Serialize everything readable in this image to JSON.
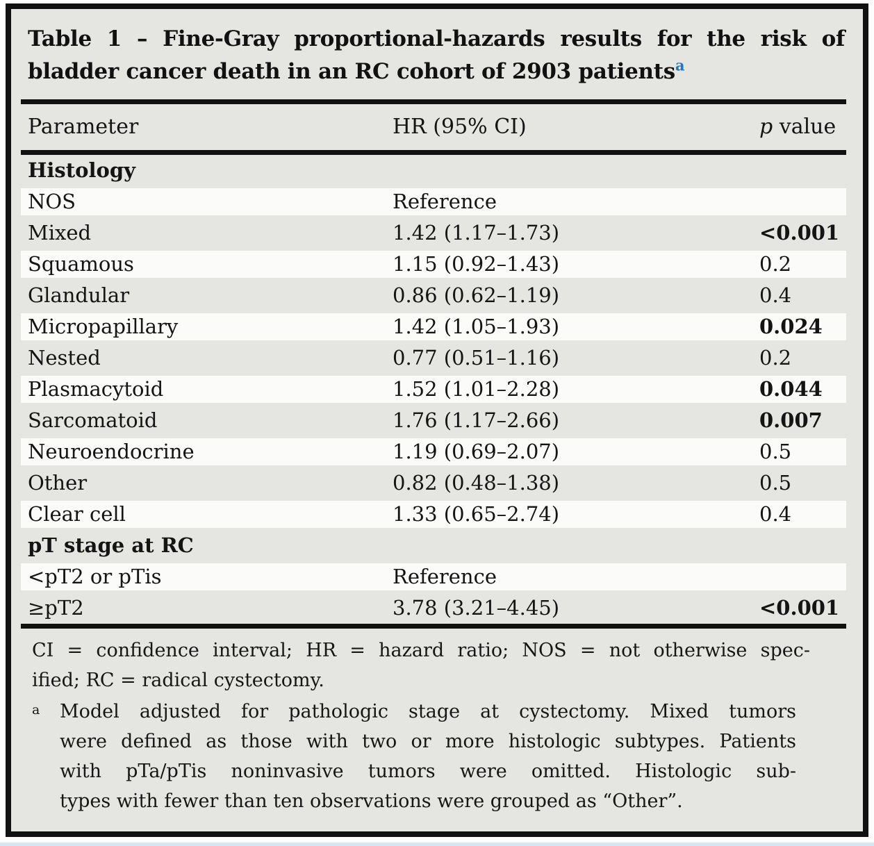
{
  "colors": {
    "frame_border": "#111111",
    "table_background": "#e5e5e2",
    "row_stripe": "#fbfbfa",
    "footnote_marker_blue": "#2878b8",
    "bottom_strip": "#d6e6f4"
  },
  "table": {
    "title": {
      "line1": "Table 1 – Fine-Gray proportional-hazards results for the risk of",
      "line2": "bladder cancer death in an RC cohort of 2903 patients",
      "footnote_marker": "a"
    },
    "columns": {
      "parameter": "Parameter",
      "hr": "HR (95% CI)",
      "p_italic": "p",
      "p_rest": " value"
    },
    "sections": [
      {
        "header": "Histology",
        "rows": [
          {
            "parameter": "NOS",
            "hr": "Reference",
            "p": "",
            "significant": false
          },
          {
            "parameter": "Mixed",
            "hr": "1.42 (1.17–1.73)",
            "p": "<0.001",
            "significant": true
          },
          {
            "parameter": "Squamous",
            "hr": "1.15 (0.92–1.43)",
            "p": "0.2",
            "significant": false
          },
          {
            "parameter": "Glandular",
            "hr": "0.86 (0.62–1.19)",
            "p": "0.4",
            "significant": false
          },
          {
            "parameter": "Micropapillary",
            "hr": "1.42 (1.05–1.93)",
            "p": "0.024",
            "significant": true
          },
          {
            "parameter": "Nested",
            "hr": "0.77 (0.51–1.16)",
            "p": "0.2",
            "significant": false
          },
          {
            "parameter": "Plasmacytoid",
            "hr": "1.52 (1.01–2.28)",
            "p": "0.044",
            "significant": true
          },
          {
            "parameter": "Sarcomatoid",
            "hr": "1.76 (1.17–2.66)",
            "p": "0.007",
            "significant": true
          },
          {
            "parameter": "Neuroendocrine",
            "hr": "1.19 (0.69–2.07)",
            "p": "0.5",
            "significant": false
          },
          {
            "parameter": "Other",
            "hr": "0.82 (0.48–1.38)",
            "p": "0.5",
            "significant": false
          },
          {
            "parameter": "Clear cell",
            "hr": "1.33 (0.65–2.74)",
            "p": "0.4",
            "significant": false
          }
        ]
      },
      {
        "header": "pT stage at RC",
        "rows": [
          {
            "parameter": "<pT2 or pTis",
            "hr": "Reference",
            "p": "",
            "significant": false
          },
          {
            "parameter": "≥pT2",
            "hr": "3.78 (3.21–4.45)",
            "p": "<0.001",
            "significant": true
          }
        ]
      }
    ],
    "footnotes": {
      "abbreviations_lines": [
        "CI = confidence interval; HR = hazard ratio; NOS = not otherwise spec-",
        "ified; RC = radical cystectomy."
      ],
      "note_a": {
        "marker": "a",
        "lines": [
          "Model adjusted for pathologic stage at cystectomy. Mixed tumors",
          "were defined as those with two or more histologic subtypes. Patients",
          "with pTa/pTis noninvasive tumors were omitted. Histologic sub-",
          "types with fewer than ten observations were grouped as “Other”."
        ]
      }
    }
  }
}
